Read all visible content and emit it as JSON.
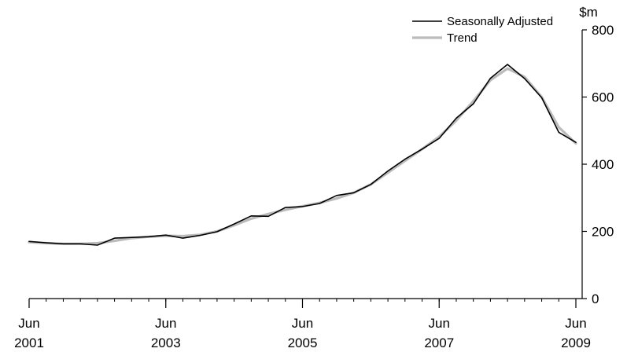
{
  "chart_data": {
    "type": "line",
    "title": "",
    "ylabel": "$m",
    "xlabel": "",
    "ylim": [
      0,
      800
    ],
    "y_axis_position": "right",
    "y_ticks": [
      0,
      200,
      400,
      600,
      800
    ],
    "x_range": [
      "2001-06",
      "2009-06"
    ],
    "x_ticks": [
      {
        "date": "2001-06",
        "month": "Jun",
        "year": "2001"
      },
      {
        "date": "2003-06",
        "month": "Jun",
        "year": "2003"
      },
      {
        "date": "2005-06",
        "month": "Jun",
        "year": "2005"
      },
      {
        "date": "2007-06",
        "month": "Jun",
        "year": "2007"
      },
      {
        "date": "2009-06",
        "month": "Jun",
        "year": "2009"
      }
    ],
    "grid": false,
    "legend_position": "top-right",
    "x": [
      "2001-06",
      "2001-09",
      "2001-12",
      "2002-03",
      "2002-06",
      "2002-09",
      "2002-12",
      "2003-03",
      "2003-06",
      "2003-09",
      "2003-12",
      "2004-03",
      "2004-06",
      "2004-09",
      "2004-12",
      "2005-03",
      "2005-06",
      "2005-09",
      "2005-12",
      "2006-03",
      "2006-06",
      "2006-09",
      "2006-12",
      "2007-03",
      "2007-06",
      "2007-09",
      "2007-12",
      "2008-03",
      "2008-06",
      "2008-09",
      "2008-12",
      "2009-03",
      "2009-06"
    ],
    "series": [
      {
        "name": "Seasonally Adjusted",
        "color": "#000000",
        "values": [
          170,
          166,
          163,
          163,
          159,
          180,
          182,
          184,
          189,
          180,
          188,
          199,
          222,
          246,
          245,
          271,
          274,
          283,
          307,
          315,
          340,
          380,
          415,
          445,
          477,
          537,
          580,
          656,
          697,
          655,
          598,
          495,
          465
        ]
      },
      {
        "name": "Trend",
        "color": "#bbbbbb",
        "values": [
          168,
          165,
          163,
          163,
          165,
          172,
          180,
          184,
          187,
          186,
          190,
          200,
          218,
          238,
          252,
          264,
          275,
          285,
          298,
          315,
          340,
          375,
          410,
          445,
          482,
          530,
          588,
          650,
          685,
          660,
          600,
          510,
          462
        ]
      }
    ]
  }
}
